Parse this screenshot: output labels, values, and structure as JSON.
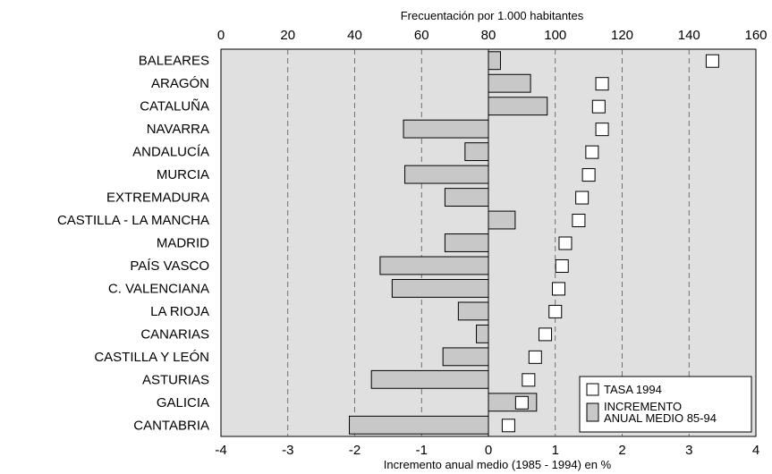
{
  "chart_data": {
    "type": "bar",
    "title": "",
    "top_axis": {
      "label": "Frecuentación por 1.000 habitantes",
      "range": [
        0,
        160
      ],
      "ticks": [
        0,
        20,
        40,
        60,
        80,
        100,
        120,
        140,
        160
      ]
    },
    "bottom_axis": {
      "label": "Incremento anual medio (1985 - 1994) en %",
      "range": [
        -4,
        4
      ],
      "ticks": [
        -4,
        -3,
        -2,
        -1,
        0,
        1,
        2,
        3,
        4
      ]
    },
    "grid": "vertical dashed at -3, -2, -1, 1, 2, 3; solid at 0",
    "legend_position": "bottom-right",
    "categories": [
      "BALEARES",
      "ARAGÓN",
      "CATALUÑA",
      "NAVARRA",
      "ANDALUCÍA",
      "MURCIA",
      "EXTREMADURA",
      "CASTILLA - LA MANCHA",
      "MADRID",
      "PAÍS VASCO",
      "C. VALENCIANA",
      "LA RIOJA",
      "CANARIAS",
      "CASTILLA Y LEÓN",
      "ASTURIAS",
      "GALICIA",
      "CANTABRIA"
    ],
    "series": [
      {
        "name": "TASA 1994",
        "axis": "top",
        "marker": "square",
        "values": [
          147,
          114,
          113,
          114,
          111,
          110,
          108,
          107,
          103,
          102,
          101,
          100,
          97,
          94,
          92,
          90,
          86
        ]
      },
      {
        "name": "INCREMENTO\nANUAL MEDIO 85-94",
        "axis": "bottom",
        "marker": "bar",
        "values": [
          0.18,
          0.63,
          0.88,
          -1.27,
          -0.35,
          -1.25,
          -0.65,
          0.4,
          -0.65,
          -1.62,
          -1.44,
          -0.45,
          -0.18,
          -0.68,
          -1.75,
          0.72,
          -2.08
        ]
      }
    ],
    "colors": {
      "plot_bg": "#e0e0e0",
      "bar_fill": "#c8c8c8",
      "marker_fill": "#ffffff",
      "stroke": "#000000"
    }
  }
}
